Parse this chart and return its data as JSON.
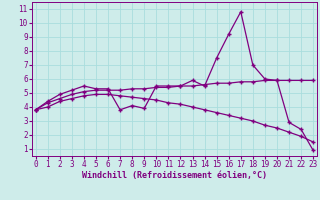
{
  "xlabel": "Windchill (Refroidissement éolien,°C)",
  "bg_color": "#ceecea",
  "line_color": "#800080",
  "grid_color": "#aadddd",
  "x_ticks": [
    0,
    1,
    2,
    3,
    4,
    5,
    6,
    7,
    8,
    9,
    10,
    11,
    12,
    13,
    14,
    15,
    16,
    17,
    18,
    19,
    20,
    21,
    22,
    23
  ],
  "y_ticks": [
    1,
    2,
    3,
    4,
    5,
    6,
    7,
    8,
    9,
    10,
    11
  ],
  "xlim": [
    -0.3,
    23.3
  ],
  "ylim": [
    0.5,
    11.5
  ],
  "line1_x": [
    0,
    1,
    2,
    3,
    4,
    5,
    6,
    7,
    8,
    9,
    10,
    11,
    12,
    13,
    14,
    15,
    16,
    17,
    18,
    19,
    20,
    21,
    22,
    23
  ],
  "line1_y": [
    3.8,
    4.4,
    4.9,
    5.2,
    5.5,
    5.3,
    5.3,
    3.8,
    4.1,
    3.9,
    5.5,
    5.5,
    5.5,
    5.9,
    5.5,
    7.5,
    9.2,
    10.8,
    7.0,
    6.0,
    5.9,
    2.9,
    2.4,
    0.9
  ],
  "line2_x": [
    0,
    1,
    2,
    3,
    4,
    5,
    6,
    7,
    8,
    9,
    10,
    11,
    12,
    13,
    14,
    15,
    16,
    17,
    18,
    19,
    20,
    21,
    22,
    23
  ],
  "line2_y": [
    3.8,
    4.3,
    4.6,
    4.9,
    5.1,
    5.2,
    5.2,
    5.2,
    5.3,
    5.3,
    5.4,
    5.4,
    5.5,
    5.5,
    5.6,
    5.7,
    5.7,
    5.8,
    5.8,
    5.9,
    5.9,
    5.9,
    5.9,
    5.9
  ],
  "line3_x": [
    0,
    1,
    2,
    3,
    4,
    5,
    6,
    7,
    8,
    9,
    10,
    11,
    12,
    13,
    14,
    15,
    16,
    17,
    18,
    19,
    20,
    21,
    22,
    23
  ],
  "line3_y": [
    3.8,
    4.0,
    4.4,
    4.6,
    4.8,
    4.9,
    4.9,
    4.8,
    4.7,
    4.6,
    4.5,
    4.3,
    4.2,
    4.0,
    3.8,
    3.6,
    3.4,
    3.2,
    3.0,
    2.7,
    2.5,
    2.2,
    1.9,
    1.5
  ],
  "tick_fontsize": 5.5,
  "xlabel_fontsize": 6.0
}
